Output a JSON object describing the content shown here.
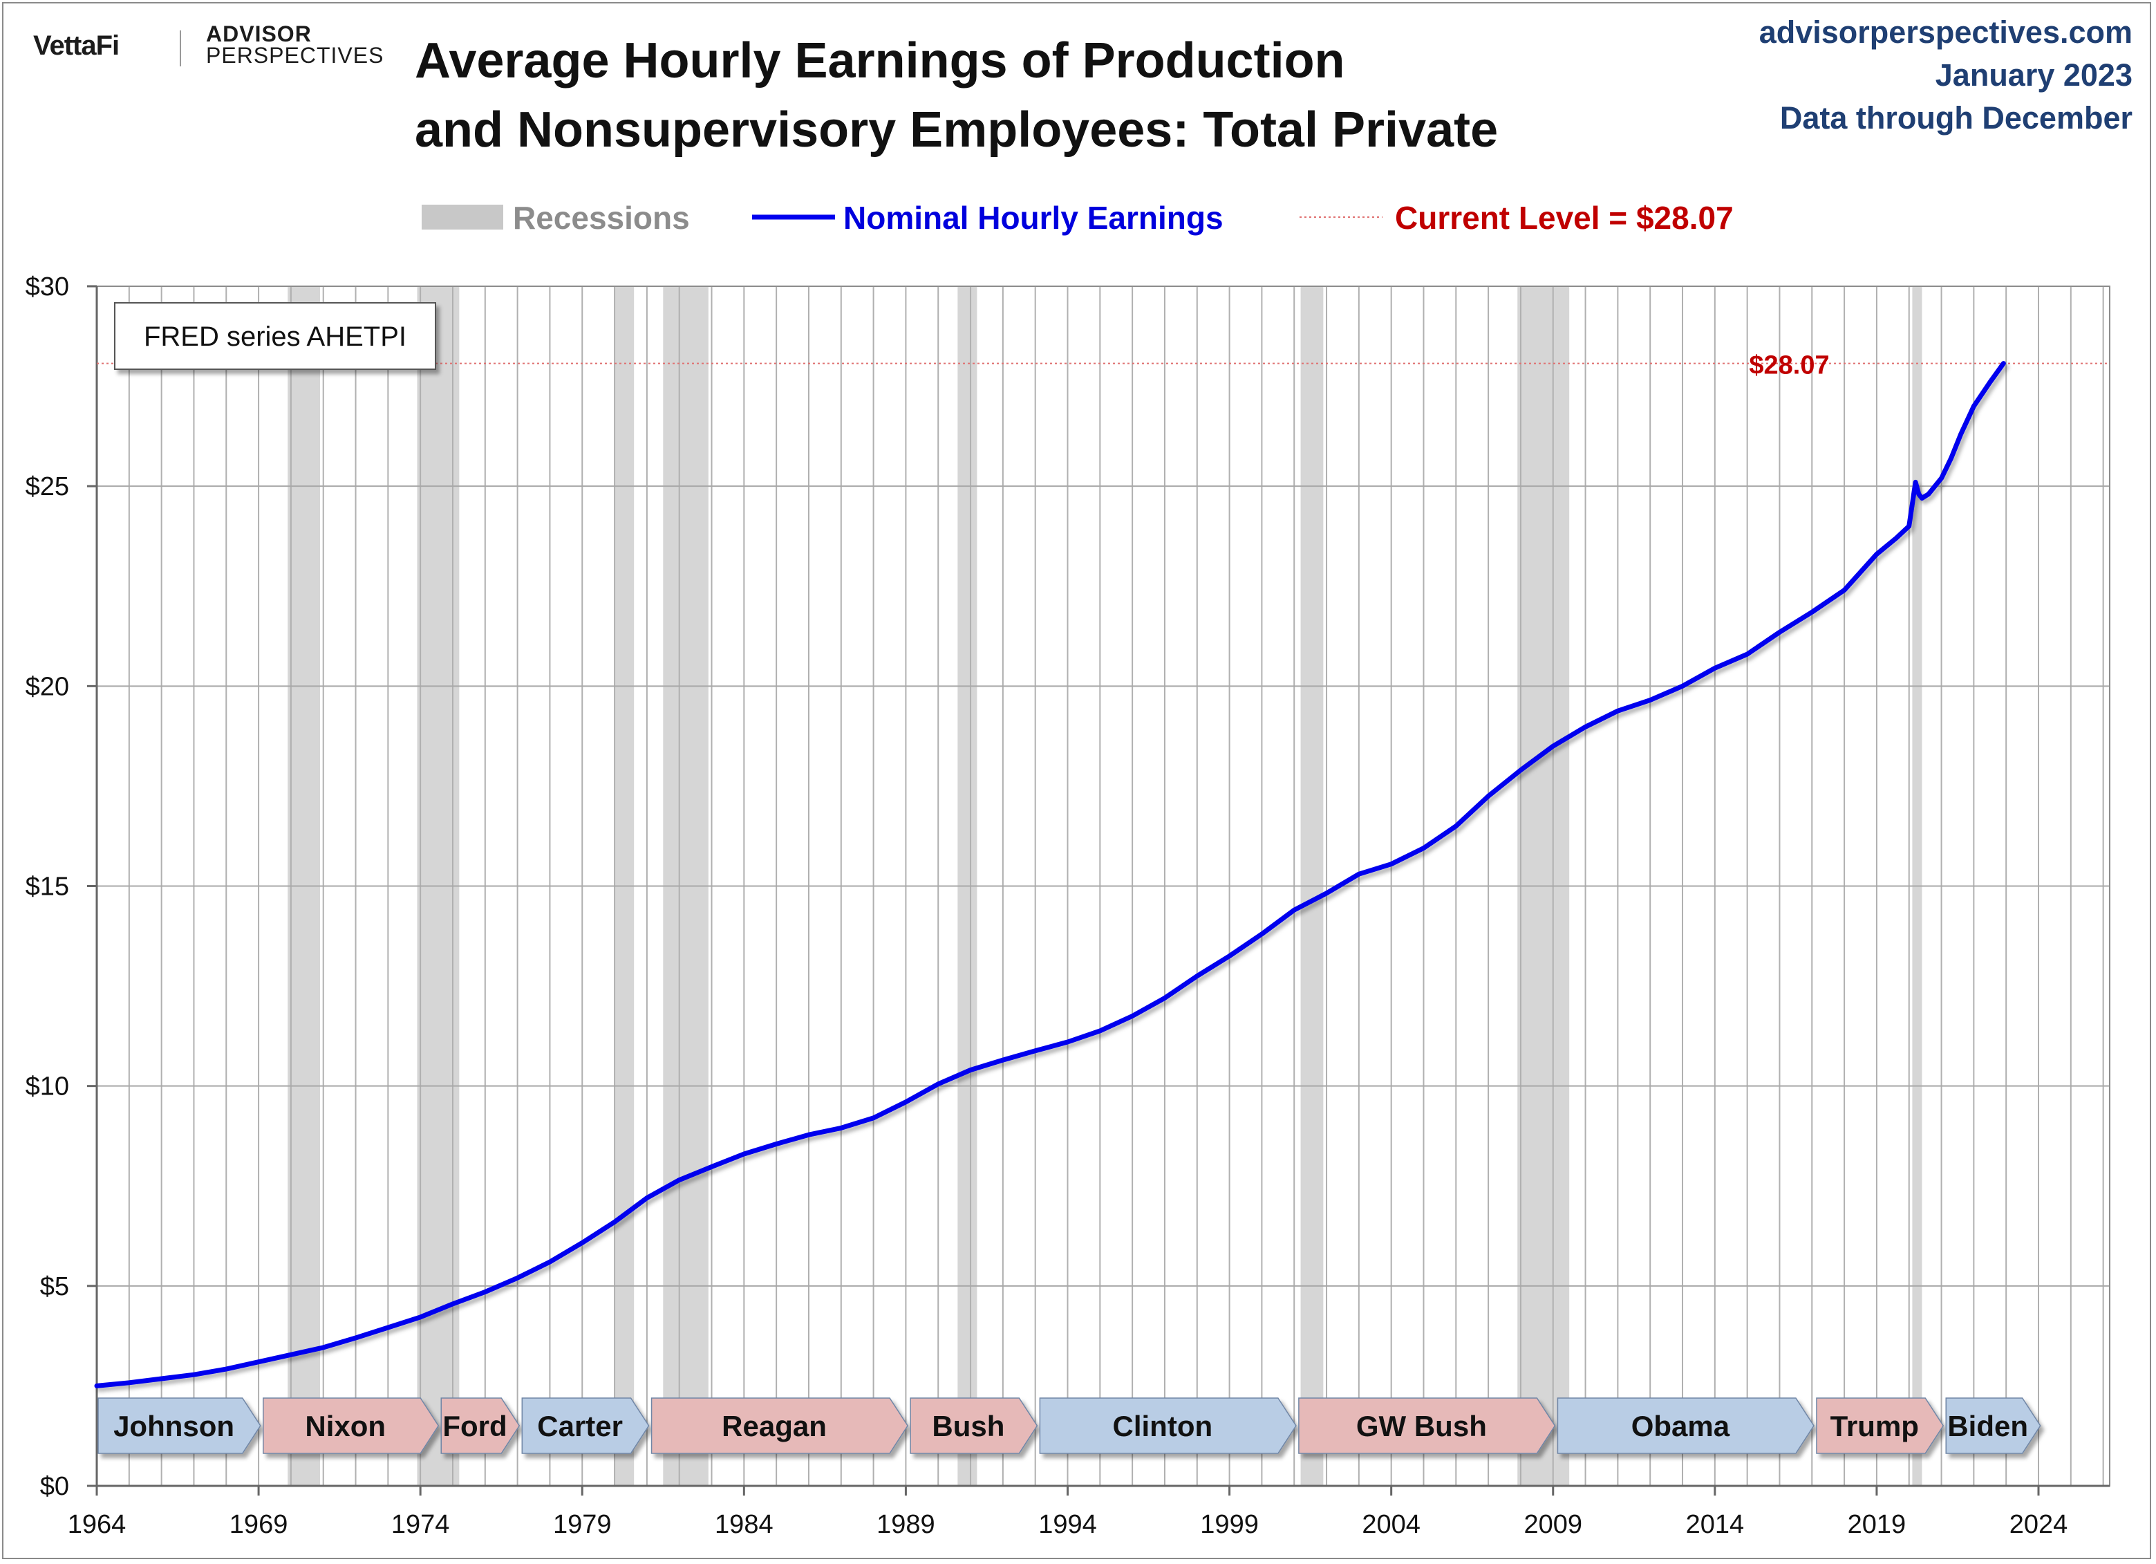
{
  "header": {
    "logo_vettafi": "VettaFi",
    "logo_advisor": "ADVISOR",
    "logo_perspectives": "PERSPECTIVES",
    "site": "advisorperspectives.com",
    "date": "January 2023",
    "data_through": "Data through December"
  },
  "chart_data": {
    "type": "line",
    "title": "Average Hourly Earnings of Production and Nonsupervisory Employees: Total Private",
    "title_lines": [
      "Average Hourly Earnings of Production",
      "and Nonsupervisory Employees: Total Private"
    ],
    "series_box_label": "FRED series AHETPI",
    "xlabel": "",
    "ylabel": "",
    "xlim": [
      1964,
      2026.2
    ],
    "ylim": [
      0,
      30
    ],
    "x_ticks": [
      1964,
      1969,
      1974,
      1979,
      1984,
      1989,
      1994,
      1999,
      2004,
      2009,
      2014,
      2019,
      2024
    ],
    "x_tick_labels": [
      "1964",
      "1969",
      "1974",
      "1979",
      "1984",
      "1989",
      "1994",
      "1999",
      "2004",
      "2009",
      "2014",
      "2019",
      "2024"
    ],
    "y_ticks": [
      0,
      5,
      10,
      15,
      20,
      25,
      30
    ],
    "y_tick_labels": [
      "$0",
      "$5",
      "$10",
      "$15",
      "$20",
      "$25",
      "$30"
    ],
    "grid": true,
    "legend": {
      "placement": "top",
      "items": [
        {
          "label": "Recessions",
          "color": "#c8c8c8",
          "text_color": "#8c8c8c"
        },
        {
          "label": "Nominal Hourly Earnings",
          "color": "#0000ee",
          "text_color": "#0000dd"
        },
        {
          "label": "Current Level = $28.07",
          "color": "#e07070",
          "text_color": "#c00000"
        }
      ]
    },
    "current_level": {
      "value": 28.07,
      "label": "$28.07",
      "color": "#c00000"
    },
    "recessions": [
      [
        1969.9,
        1970.9
      ],
      [
        1973.9,
        1975.2
      ],
      [
        1980.0,
        1980.6
      ],
      [
        1981.5,
        1982.9
      ],
      [
        1990.6,
        1991.2
      ],
      [
        2001.2,
        2001.9
      ],
      [
        2007.9,
        2009.5
      ],
      [
        2020.1,
        2020.4
      ]
    ],
    "presidents": [
      {
        "name": "Johnson",
        "start": 1964.0,
        "end": 1969.1,
        "party": "D"
      },
      {
        "name": "Nixon",
        "start": 1969.1,
        "end": 1974.6,
        "party": "R"
      },
      {
        "name": "Ford",
        "start": 1974.6,
        "end": 1977.1,
        "party": "R"
      },
      {
        "name": "Carter",
        "start": 1977.1,
        "end": 1981.1,
        "party": "D"
      },
      {
        "name": "Reagan",
        "start": 1981.1,
        "end": 1989.1,
        "party": "R"
      },
      {
        "name": "Bush",
        "start": 1989.1,
        "end": 1993.1,
        "party": "R"
      },
      {
        "name": "Clinton",
        "start": 1993.1,
        "end": 2001.1,
        "party": "D"
      },
      {
        "name": "GW Bush",
        "start": 2001.1,
        "end": 2009.1,
        "party": "R"
      },
      {
        "name": "Obama",
        "start": 2009.1,
        "end": 2017.1,
        "party": "D"
      },
      {
        "name": "Trump",
        "start": 2017.1,
        "end": 2021.1,
        "party": "R"
      },
      {
        "name": "Biden",
        "start": 2021.1,
        "end": 2024.1,
        "party": "D"
      }
    ],
    "party_colors": {
      "D": "#b9cde5",
      "R": "#e6b9b8"
    },
    "series": [
      {
        "name": "Nominal Hourly Earnings",
        "color": "#0000ee",
        "x": [
          1964.0,
          1965.0,
          1966.0,
          1967.0,
          1968.0,
          1969.0,
          1970.0,
          1971.0,
          1972.0,
          1973.0,
          1974.0,
          1975.0,
          1976.0,
          1977.0,
          1978.0,
          1979.0,
          1980.0,
          1981.0,
          1982.0,
          1983.0,
          1984.0,
          1985.0,
          1986.0,
          1987.0,
          1988.0,
          1989.0,
          1990.0,
          1991.0,
          1992.0,
          1993.0,
          1994.0,
          1995.0,
          1996.0,
          1997.0,
          1998.0,
          1999.0,
          2000.0,
          2001.0,
          2002.0,
          2003.0,
          2004.0,
          2005.0,
          2006.0,
          2007.0,
          2008.0,
          2009.0,
          2010.0,
          2011.0,
          2012.0,
          2013.0,
          2014.0,
          2015.0,
          2016.0,
          2017.0,
          2018.0,
          2019.0,
          2019.6,
          2020.0,
          2020.2,
          2020.3,
          2020.4,
          2020.6,
          2021.0,
          2021.3,
          2021.6,
          2022.0,
          2022.5,
          2022.92
        ],
        "y": [
          2.5,
          2.58,
          2.68,
          2.78,
          2.92,
          3.1,
          3.28,
          3.46,
          3.7,
          3.96,
          4.22,
          4.55,
          4.85,
          5.2,
          5.6,
          6.08,
          6.6,
          7.2,
          7.65,
          7.98,
          8.3,
          8.55,
          8.78,
          8.95,
          9.2,
          9.6,
          10.05,
          10.4,
          10.65,
          10.88,
          11.1,
          11.38,
          11.75,
          12.2,
          12.75,
          13.25,
          13.8,
          14.4,
          14.82,
          15.3,
          15.55,
          15.95,
          16.5,
          17.25,
          17.9,
          18.5,
          18.98,
          19.38,
          19.65,
          20.0,
          20.45,
          20.8,
          21.35,
          21.85,
          22.4,
          23.3,
          23.7,
          24.0,
          25.1,
          24.8,
          24.7,
          24.8,
          25.2,
          25.7,
          26.3,
          27.0,
          27.6,
          28.07
        ]
      }
    ]
  }
}
